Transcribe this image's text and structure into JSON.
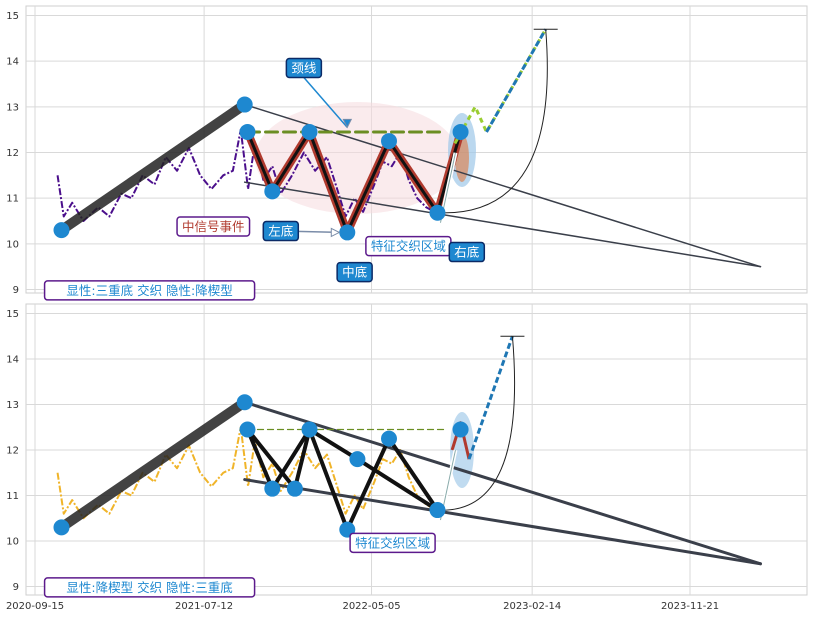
{
  "chart_data": [
    {
      "type": "line",
      "panel": "top",
      "ylim": [
        8.8,
        15.2
      ],
      "yticks": [
        "9",
        "10",
        "11",
        "12",
        "13",
        "14",
        "15"
      ],
      "grid": true,
      "price_color": "#4b0f8c",
      "price_series": [
        [
          "2020-10-25",
          11.5
        ],
        [
          "2020-11-05",
          10.6
        ],
        [
          "2020-11-20",
          10.9
        ],
        [
          "2020-12-10",
          10.5
        ],
        [
          "2021-01-05",
          10.8
        ],
        [
          "2021-01-25",
          10.6
        ],
        [
          "2021-02-15",
          11.1
        ],
        [
          "2021-03-05",
          11.0
        ],
        [
          "2021-03-25",
          11.5
        ],
        [
          "2021-04-15",
          11.3
        ],
        [
          "2021-05-05",
          11.9
        ],
        [
          "2021-05-25",
          11.6
        ],
        [
          "2021-06-15",
          12.1
        ],
        [
          "2021-07-05",
          11.5
        ],
        [
          "2021-07-25",
          11.2
        ],
        [
          "2021-08-15",
          11.5
        ],
        [
          "2021-09-01",
          11.6
        ],
        [
          "2021-09-15",
          12.5
        ],
        [
          "2021-09-28",
          11.2
        ],
        [
          "2021-10-10",
          12.2
        ],
        [
          "2021-10-25",
          11.4
        ],
        [
          "2021-11-10",
          11.7
        ],
        [
          "2021-11-25",
          11.1
        ],
        [
          "2021-12-15",
          11.5
        ],
        [
          "2022-01-05",
          12.0
        ],
        [
          "2022-01-25",
          11.6
        ],
        [
          "2022-02-15",
          11.9
        ],
        [
          "2022-03-05",
          11.2
        ],
        [
          "2022-03-20",
          10.6
        ],
        [
          "2022-04-05",
          11.0
        ],
        [
          "2022-04-20",
          10.7
        ],
        [
          "2022-05-10",
          11.3
        ],
        [
          "2022-05-25",
          11.8
        ],
        [
          "2022-06-10",
          11.7
        ],
        [
          "2022-06-25",
          12.0
        ],
        [
          "2022-07-10",
          11.4
        ],
        [
          "2022-07-25",
          11.0
        ],
        [
          "2022-08-10",
          10.8
        ],
        [
          "2022-08-25",
          10.7
        ]
      ],
      "trend_lines": [
        {
          "role": "rise",
          "color": "#222222",
          "width": 10,
          "points": [
            [
              "2020-11-01",
              10.3
            ],
            [
              "2021-09-22",
              13.05
            ]
          ]
        },
        {
          "role": "upper",
          "color": "#3a3f4a",
          "width": 1.5,
          "points": [
            [
              "2021-09-22",
              13.05
            ],
            [
              "2024-03-25",
              9.5
            ]
          ]
        },
        {
          "role": "lower",
          "color": "#3a3f4a",
          "width": 1.5,
          "points": [
            [
              "2021-09-22",
              11.35
            ],
            [
              "2024-03-25",
              9.5
            ]
          ]
        },
        {
          "role": "neckline",
          "color": "#6b8e23",
          "width": 3,
          "dash": "12,6",
          "points": [
            [
              "2021-09-27",
              12.45
            ],
            [
              "2022-09-10",
              12.45
            ]
          ]
        }
      ],
      "pattern_lines": [
        {
          "color": "#b03a2e",
          "width": 8,
          "points": [
            [
              "2021-09-27",
              12.45
            ],
            [
              "2021-11-10",
              11.15
            ],
            [
              "2022-01-15",
              12.45
            ],
            [
              "2022-03-23",
              10.25
            ],
            [
              "2022-06-05",
              12.25
            ],
            [
              "2022-08-30",
              10.68
            ],
            [
              "2022-10-10",
              12.45
            ]
          ]
        },
        {
          "color": "#111111",
          "width": 3,
          "points": [
            [
              "2021-09-27",
              12.45
            ],
            [
              "2021-11-10",
              11.15
            ],
            [
              "2022-01-15",
              12.45
            ],
            [
              "2022-03-23",
              10.25
            ],
            [
              "2022-06-05",
              12.25
            ],
            [
              "2022-08-30",
              10.68
            ],
            [
              "2022-10-10",
              12.45
            ]
          ]
        }
      ],
      "breakout": [
        {
          "color": "#9acd32",
          "dash": "5,4",
          "points": [
            [
              "2022-09-30",
              12.2
            ],
            [
              "2022-11-05",
              13.0
            ],
            [
              "2022-11-25",
              12.45
            ],
            [
              "2023-03-10",
              14.7
            ]
          ]
        },
        {
          "color": "#1f77b4",
          "dash": "6,3",
          "points": [
            [
              "2022-11-25",
              12.45
            ],
            [
              "2023-03-10",
              14.7
            ]
          ]
        }
      ],
      "points": [
        [
          "2020-11-01",
          10.3
        ],
        [
          "2021-09-22",
          13.05
        ],
        [
          "2021-09-27",
          12.45
        ],
        [
          "2021-11-10",
          11.15
        ],
        [
          "2022-01-15",
          12.45
        ],
        [
          "2022-03-23",
          10.25
        ],
        [
          "2022-06-05",
          12.25
        ],
        [
          "2022-08-30",
          10.68
        ],
        [
          "2022-10-10",
          12.45
        ]
      ],
      "annotations": [
        {
          "text": "颈线",
          "style": "blue",
          "anchor": [
            "2022-01-05",
            13.85
          ],
          "arrow_to": [
            "2022-03-23",
            12.55
          ]
        },
        {
          "text": "中信号事件",
          "style": "white-red",
          "anchor": [
            "2021-05-25",
            10.38
          ]
        },
        {
          "text": "左底",
          "style": "blue",
          "anchor": [
            "2021-10-25",
            10.28
          ],
          "arrow_to": [
            "2022-03-23",
            10.25
          ]
        },
        {
          "text": "特征交织区域",
          "style": "white-blue",
          "anchor": [
            "2022-04-25",
            9.95
          ]
        },
        {
          "text": "右底",
          "style": "blue",
          "anchor": [
            "2022-09-20",
            9.82
          ]
        },
        {
          "text": "中底",
          "style": "blue",
          "anchor": [
            "2022-03-05",
            9.38
          ]
        },
        {
          "text": "显性:三重底 交织 隐性:降楔型",
          "style": "white-blue",
          "anchor": [
            "2020-10-02",
            8.98
          ]
        }
      ]
    },
    {
      "type": "line",
      "panel": "bottom",
      "ylim": [
        8.8,
        15.2
      ],
      "yticks": [
        "9",
        "10",
        "11",
        "12",
        "13",
        "14",
        "15"
      ],
      "xticks": [
        "2020-09-15",
        "2021-07-12",
        "2022-05-05",
        "2023-02-14",
        "2023-11-21"
      ],
      "grid": true,
      "price_color": "#f0b429",
      "price_series": [
        [
          "2020-10-25",
          11.5
        ],
        [
          "2020-11-05",
          10.6
        ],
        [
          "2020-11-20",
          10.9
        ],
        [
          "2020-12-10",
          10.5
        ],
        [
          "2021-01-05",
          10.8
        ],
        [
          "2021-01-25",
          10.6
        ],
        [
          "2021-02-15",
          11.1
        ],
        [
          "2021-03-05",
          11.0
        ],
        [
          "2021-03-25",
          11.5
        ],
        [
          "2021-04-15",
          11.3
        ],
        [
          "2021-05-05",
          11.9
        ],
        [
          "2021-05-25",
          11.6
        ],
        [
          "2021-06-15",
          12.1
        ],
        [
          "2021-07-05",
          11.5
        ],
        [
          "2021-07-25",
          11.2
        ],
        [
          "2021-08-15",
          11.5
        ],
        [
          "2021-09-01",
          11.6
        ],
        [
          "2021-09-15",
          12.5
        ],
        [
          "2021-09-28",
          11.2
        ],
        [
          "2021-10-10",
          12.2
        ],
        [
          "2021-10-25",
          11.4
        ],
        [
          "2021-11-10",
          11.7
        ],
        [
          "2021-11-25",
          11.1
        ],
        [
          "2021-12-15",
          11.5
        ],
        [
          "2022-01-05",
          12.0
        ],
        [
          "2022-01-25",
          11.6
        ],
        [
          "2022-02-15",
          11.9
        ],
        [
          "2022-03-05",
          11.2
        ],
        [
          "2022-03-20",
          10.6
        ],
        [
          "2022-04-05",
          11.0
        ],
        [
          "2022-04-20",
          10.7
        ],
        [
          "2022-05-10",
          11.3
        ],
        [
          "2022-05-25",
          11.8
        ],
        [
          "2022-06-10",
          11.7
        ],
        [
          "2022-06-25",
          12.0
        ],
        [
          "2022-07-10",
          11.4
        ],
        [
          "2022-07-25",
          11.0
        ],
        [
          "2022-08-10",
          10.8
        ],
        [
          "2022-08-25",
          10.7
        ]
      ],
      "trend_lines": [
        {
          "role": "rise",
          "color": "#222222",
          "width": 10,
          "points": [
            [
              "2020-11-01",
              10.3
            ],
            [
              "2021-09-22",
              13.05
            ]
          ]
        },
        {
          "role": "upper",
          "color": "#3a3f4a",
          "width": 3,
          "points": [
            [
              "2021-09-22",
              13.05
            ],
            [
              "2024-03-25",
              9.5
            ]
          ]
        },
        {
          "role": "lower",
          "color": "#3a3f4a",
          "width": 3,
          "points": [
            [
              "2021-09-22",
              11.35
            ],
            [
              "2024-03-25",
              9.5
            ]
          ]
        },
        {
          "role": "neckline",
          "color": "#6b8e23",
          "width": 1.2,
          "dash": "6,4",
          "points": [
            [
              "2021-09-27",
              12.45
            ],
            [
              "2022-09-10",
              12.45
            ]
          ]
        }
      ],
      "pattern_lines": [
        {
          "color": "#111111",
          "width": 4,
          "points": [
            [
              "2021-09-27",
              12.45
            ],
            [
              "2021-11-10",
              11.15
            ],
            [
              "2022-01-15",
              12.45
            ],
            [
              "2022-03-23",
              10.25
            ],
            [
              "2022-06-05",
              12.25
            ],
            [
              "2022-08-30",
              10.68
            ]
          ]
        },
        {
          "color": "#111111",
          "width": 4,
          "points": [
            [
              "2021-09-27",
              12.45
            ],
            [
              "2021-12-20",
              11.15
            ],
            [
              "2022-01-15",
              12.45
            ],
            [
              "2022-04-10",
              11.8
            ],
            [
              "2022-08-30",
              10.68
            ]
          ]
        }
      ],
      "breakout": [
        {
          "color": "#b03a2e",
          "dash": "",
          "points": [
            [
              "2022-09-25",
              12.0
            ],
            [
              "2022-10-10",
              12.6
            ],
            [
              "2022-10-25",
              11.8
            ]
          ]
        },
        {
          "color": "#1f77b4",
          "dash": "6,3",
          "points": [
            [
              "2022-10-25",
              11.8
            ],
            [
              "2023-01-10",
              14.5
            ]
          ]
        }
      ],
      "points": [
        [
          "2020-11-01",
          10.3
        ],
        [
          "2021-09-22",
          13.05
        ],
        [
          "2021-09-27",
          12.45
        ],
        [
          "2021-11-10",
          11.15
        ],
        [
          "2021-12-20",
          11.15
        ],
        [
          "2022-01-15",
          12.45
        ],
        [
          "2022-03-23",
          10.25
        ],
        [
          "2022-04-10",
          11.8
        ],
        [
          "2022-06-05",
          12.25
        ],
        [
          "2022-08-30",
          10.68
        ],
        [
          "2022-10-10",
          12.45
        ]
      ],
      "annotations": [
        {
          "text": "特征交织区域",
          "style": "white-blue",
          "anchor": [
            "2022-03-28",
            9.96
          ]
        },
        {
          "text": "显性:降楔型 交织 隐性:三重底",
          "style": "white-blue",
          "anchor": [
            "2020-10-02",
            8.98
          ]
        }
      ]
    }
  ]
}
